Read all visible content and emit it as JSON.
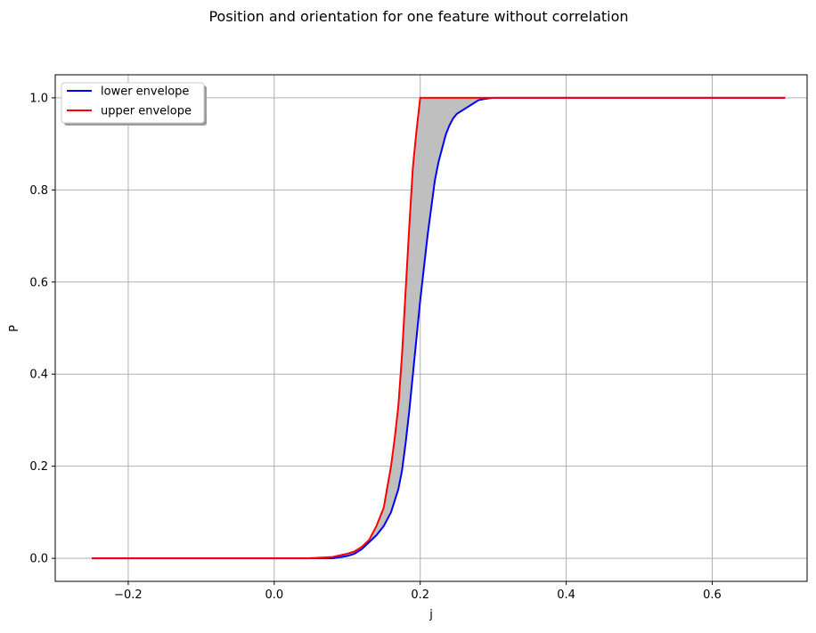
{
  "chart_data": {
    "type": "line",
    "title": "Position and orientation for one feature without correlation",
    "xlabel": "j",
    "ylabel": "P",
    "xlim": [
      -0.3,
      0.73
    ],
    "ylim": [
      -0.05,
      1.05
    ],
    "xticks": [
      -0.2,
      0.0,
      0.2,
      0.4,
      0.6
    ],
    "xtick_labels": [
      "−0.2",
      "0.0",
      "0.2",
      "0.4",
      "0.6"
    ],
    "yticks": [
      0.0,
      0.2,
      0.4,
      0.6,
      0.8,
      1.0
    ],
    "ytick_labels": [
      "0.0",
      "0.2",
      "0.4",
      "0.6",
      "0.8",
      "1.0"
    ],
    "grid": true,
    "legend_position": "upper-left",
    "fill_between": {
      "color": "#bfbfbf"
    },
    "series": [
      {
        "name": "lower envelope",
        "color": "#0000ff",
        "x": [
          -0.25,
          0.08,
          0.1,
          0.11,
          0.12,
          0.13,
          0.14,
          0.15,
          0.16,
          0.17,
          0.175,
          0.18,
          0.185,
          0.19,
          0.195,
          0.2,
          0.205,
          0.21,
          0.215,
          0.22,
          0.225,
          0.23,
          0.235,
          0.24,
          0.245,
          0.25,
          0.26,
          0.27,
          0.28,
          0.29,
          0.3,
          0.32,
          0.7
        ],
        "y": [
          0.0,
          0.0,
          0.005,
          0.01,
          0.02,
          0.035,
          0.05,
          0.07,
          0.1,
          0.15,
          0.19,
          0.25,
          0.32,
          0.4,
          0.48,
          0.56,
          0.63,
          0.7,
          0.76,
          0.82,
          0.86,
          0.89,
          0.92,
          0.94,
          0.955,
          0.965,
          0.975,
          0.985,
          0.995,
          0.998,
          1.0,
          1.0,
          1.0
        ]
      },
      {
        "name": "upper envelope",
        "color": "#ff0000",
        "x": [
          -0.25,
          0.045,
          0.08,
          0.1,
          0.11,
          0.12,
          0.13,
          0.14,
          0.15,
          0.16,
          0.165,
          0.17,
          0.175,
          0.18,
          0.185,
          0.19,
          0.195,
          0.2,
          0.7
        ],
        "y": [
          0.0,
          0.0,
          0.003,
          0.01,
          0.015,
          0.025,
          0.04,
          0.07,
          0.11,
          0.2,
          0.26,
          0.33,
          0.44,
          0.58,
          0.72,
          0.85,
          0.93,
          1.0,
          1.0
        ]
      }
    ]
  }
}
